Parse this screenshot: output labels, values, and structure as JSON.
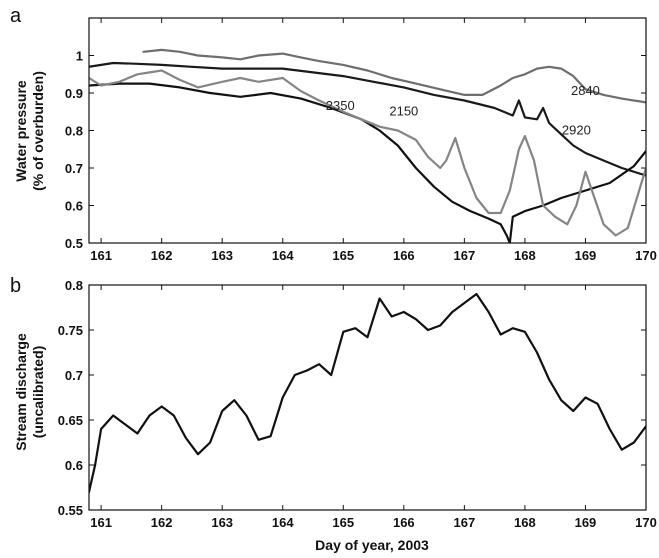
{
  "figure": {
    "xlabel": "Day of year, 2003"
  },
  "chart_data": [
    {
      "panel": "a",
      "type": "line",
      "xlabel": "",
      "ylabel": [
        "Water pressure",
        "(% of overburden)"
      ],
      "xlim": [
        160.8,
        170
      ],
      "ylim": [
        0.5,
        1.1
      ],
      "xticks": [
        161,
        162,
        163,
        164,
        165,
        166,
        167,
        168,
        169,
        170
      ],
      "yticks": [
        0.5,
        0.6,
        0.7,
        0.8,
        0.9,
        1
      ],
      "grid": false,
      "series": [
        {
          "name": "2840",
          "color": "#6e6e6e",
          "x": [
            161.7,
            162.0,
            162.3,
            162.6,
            163.0,
            163.3,
            163.6,
            164.0,
            164.3,
            164.6,
            165.0,
            165.4,
            165.8,
            166.2,
            166.6,
            167.0,
            167.3,
            167.6,
            167.8,
            168.0,
            168.2,
            168.4,
            168.6,
            168.8,
            169.0,
            169.3,
            169.6,
            170.0
          ],
          "values": [
            1.01,
            1.015,
            1.01,
            1.0,
            0.995,
            0.99,
            1.0,
            1.005,
            0.995,
            0.985,
            0.975,
            0.96,
            0.94,
            0.925,
            0.91,
            0.895,
            0.895,
            0.92,
            0.94,
            0.95,
            0.965,
            0.97,
            0.965,
            0.945,
            0.91,
            0.895,
            0.885,
            0.875
          ]
        },
        {
          "name": "2920",
          "color": "#1a1a1a",
          "x": [
            160.8,
            161.2,
            161.6,
            162.0,
            162.5,
            163.0,
            163.5,
            164.0,
            164.5,
            165.0,
            165.5,
            166.0,
            166.5,
            167.0,
            167.5,
            167.8,
            167.9,
            168.0,
            168.2,
            168.3,
            168.4,
            168.6,
            168.8,
            169.0,
            169.3,
            169.6,
            170.0
          ],
          "values": [
            0.97,
            0.98,
            0.978,
            0.975,
            0.97,
            0.965,
            0.965,
            0.965,
            0.955,
            0.945,
            0.93,
            0.915,
            0.895,
            0.88,
            0.86,
            0.84,
            0.88,
            0.835,
            0.83,
            0.86,
            0.82,
            0.79,
            0.76,
            0.74,
            0.72,
            0.7,
            0.68
          ]
        },
        {
          "name": "2350",
          "color": "#111111",
          "x": [
            160.8,
            161.3,
            161.8,
            162.3,
            162.8,
            163.3,
            163.8,
            164.3,
            164.8,
            165.3,
            165.6,
            165.9,
            166.2,
            166.5,
            166.8,
            167.1,
            167.4,
            167.6,
            167.7,
            167.75,
            167.8,
            168.0,
            168.3,
            168.6,
            169.0,
            169.4,
            169.8,
            170.0
          ],
          "values": [
            0.92,
            0.925,
            0.925,
            0.915,
            0.9,
            0.89,
            0.9,
            0.885,
            0.86,
            0.83,
            0.8,
            0.76,
            0.7,
            0.65,
            0.61,
            0.585,
            0.565,
            0.55,
            0.52,
            0.5,
            0.57,
            0.585,
            0.6,
            0.62,
            0.64,
            0.66,
            0.705,
            0.745
          ]
        },
        {
          "name": "2150",
          "color": "#858585",
          "x": [
            160.8,
            161.0,
            161.3,
            161.6,
            162.0,
            162.3,
            162.6,
            163.0,
            163.3,
            163.6,
            164.0,
            164.3,
            164.6,
            165.0,
            165.3,
            165.6,
            165.9,
            166.2,
            166.4,
            166.6,
            166.7,
            166.85,
            167.0,
            167.2,
            167.4,
            167.6,
            167.75,
            167.9,
            168.0,
            168.15,
            168.3,
            168.5,
            168.7,
            168.85,
            169.0,
            169.15,
            169.3,
            169.5,
            169.7,
            169.85,
            170.0
          ],
          "values": [
            0.94,
            0.92,
            0.93,
            0.95,
            0.96,
            0.935,
            0.915,
            0.93,
            0.94,
            0.93,
            0.94,
            0.905,
            0.88,
            0.85,
            0.83,
            0.81,
            0.8,
            0.775,
            0.73,
            0.7,
            0.72,
            0.78,
            0.7,
            0.62,
            0.58,
            0.58,
            0.64,
            0.75,
            0.785,
            0.72,
            0.6,
            0.57,
            0.55,
            0.6,
            0.69,
            0.62,
            0.55,
            0.52,
            0.54,
            0.62,
            0.7
          ]
        }
      ],
      "annotations": [
        {
          "text": "2840",
          "x": 169.0,
          "y": 0.895
        },
        {
          "text": "2150",
          "x": 166.0,
          "y": 0.84
        },
        {
          "text": "2350",
          "x": 164.95,
          "y": 0.855
        },
        {
          "text": "2920",
          "x": 168.85,
          "y": 0.79
        }
      ]
    },
    {
      "panel": "b",
      "type": "line",
      "xlabel": "Day of year, 2003",
      "ylabel": [
        "Stream discharge",
        "(uncalibrated)"
      ],
      "xlim": [
        160.8,
        170
      ],
      "ylim": [
        0.55,
        0.8
      ],
      "xticks": [
        161,
        162,
        163,
        164,
        165,
        166,
        167,
        168,
        169,
        170
      ],
      "yticks": [
        0.55,
        0.6,
        0.65,
        0.7,
        0.75,
        0.8
      ],
      "grid": false,
      "series": [
        {
          "name": "",
          "color": "#111111",
          "x": [
            160.8,
            160.9,
            161.0,
            161.2,
            161.4,
            161.6,
            161.8,
            162.0,
            162.2,
            162.4,
            162.6,
            162.8,
            163.0,
            163.2,
            163.4,
            163.6,
            163.8,
            164.0,
            164.2,
            164.4,
            164.6,
            164.8,
            165.0,
            165.2,
            165.4,
            165.6,
            165.8,
            166.0,
            166.2,
            166.4,
            166.6,
            166.8,
            167.0,
            167.2,
            167.4,
            167.6,
            167.8,
            168.0,
            168.2,
            168.4,
            168.6,
            168.8,
            169.0,
            169.2,
            169.4,
            169.6,
            169.8,
            170.0
          ],
          "values": [
            0.57,
            0.6,
            0.64,
            0.655,
            0.645,
            0.635,
            0.655,
            0.665,
            0.655,
            0.63,
            0.612,
            0.625,
            0.66,
            0.672,
            0.655,
            0.628,
            0.632,
            0.675,
            0.7,
            0.705,
            0.712,
            0.7,
            0.748,
            0.752,
            0.742,
            0.785,
            0.765,
            0.77,
            0.762,
            0.75,
            0.755,
            0.77,
            0.78,
            0.79,
            0.77,
            0.745,
            0.752,
            0.748,
            0.725,
            0.695,
            0.672,
            0.66,
            0.675,
            0.668,
            0.64,
            0.617,
            0.625,
            0.643
          ]
        }
      ]
    }
  ]
}
